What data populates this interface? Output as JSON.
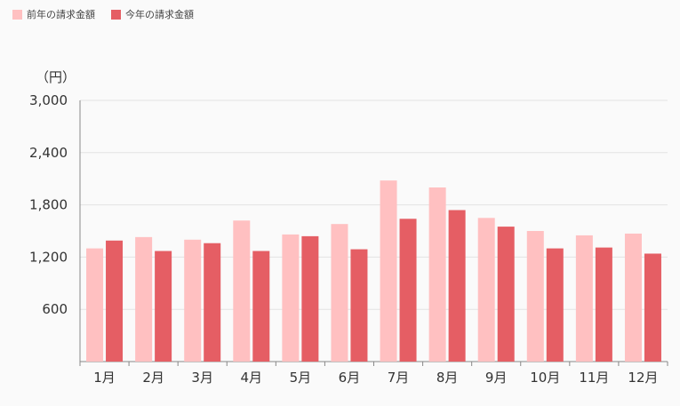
{
  "legend": [
    {
      "label": "前年の請求金額",
      "color": "#ffc0c1"
    },
    {
      "label": "今年の請求金額",
      "color": "#e55e64"
    }
  ],
  "chart_data": {
    "type": "bar",
    "unit_label": "（円）",
    "categories": [
      "1月",
      "2月",
      "3月",
      "4月",
      "5月",
      "6月",
      "7月",
      "8月",
      "9月",
      "10月",
      "11月",
      "12月"
    ],
    "series": [
      {
        "name": "前年の請求金額",
        "color": "#ffc0c1",
        "values": [
          1300,
          1430,
          1400,
          1620,
          1460,
          1580,
          2080,
          2000,
          1650,
          1500,
          1450,
          1470
        ]
      },
      {
        "name": "今年の請求金額",
        "color": "#e55e64",
        "values": [
          1390,
          1270,
          1360,
          1270,
          1440,
          1290,
          1640,
          1740,
          1550,
          1300,
          1310,
          1240
        ]
      }
    ],
    "yticks": [
      600,
      1200,
      1800,
      2400,
      3000
    ],
    "ytick_labels": [
      "600",
      "1,200",
      "1,800",
      "2,400",
      "3,000"
    ],
    "ylim": [
      0,
      3000
    ],
    "grid": true,
    "legend_position": "top-left"
  }
}
